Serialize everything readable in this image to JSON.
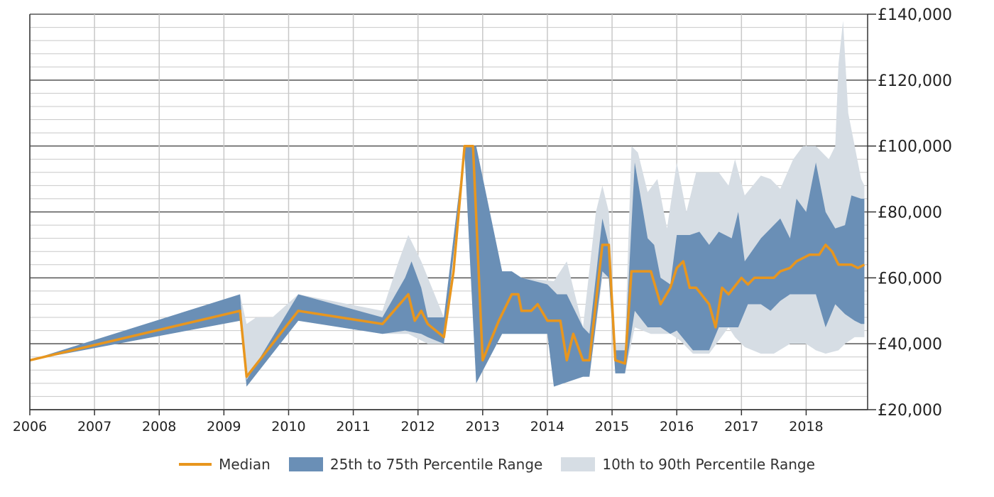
{
  "chart_data": {
    "type": "area",
    "x_tick_labels": [
      "2006",
      "2007",
      "2008",
      "2009",
      "2010",
      "2011",
      "2012",
      "2013",
      "2014",
      "2015",
      "2016",
      "2017",
      "2018"
    ],
    "y_tick_labels": [
      "£20,000",
      "£40,000",
      "£60,000",
      "£80,000",
      "£100,000",
      "£120,000",
      "£140,000"
    ],
    "xlim": [
      2006,
      2018.95
    ],
    "ylim": [
      20000,
      140000
    ],
    "y_gridline_step": 4000,
    "grid": true,
    "legend_position": "bottom",
    "colors": {
      "median": "#e8961e",
      "p25_p75": "#6a8fb6",
      "p10_p90": "#d6dde4",
      "grid_minor": "#c8c8c8",
      "grid_major": "#555555"
    },
    "series": [
      {
        "name": "Median",
        "points": [
          [
            2006.0,
            35000
          ],
          [
            2009.25,
            50000
          ],
          [
            2009.35,
            30000
          ],
          [
            2010.15,
            50000
          ],
          [
            2011.45,
            46000
          ],
          [
            2011.85,
            55000
          ],
          [
            2011.95,
            47000
          ],
          [
            2012.05,
            50000
          ],
          [
            2012.15,
            46000
          ],
          [
            2012.4,
            42000
          ],
          [
            2012.55,
            62000
          ],
          [
            2012.72,
            100000
          ],
          [
            2012.85,
            100000
          ],
          [
            2013.0,
            35000
          ],
          [
            2013.25,
            47000
          ],
          [
            2013.45,
            55000
          ],
          [
            2013.55,
            55000
          ],
          [
            2013.6,
            50000
          ],
          [
            2013.75,
            50000
          ],
          [
            2013.85,
            52000
          ],
          [
            2014.0,
            47000
          ],
          [
            2014.2,
            47000
          ],
          [
            2014.3,
            35000
          ],
          [
            2014.4,
            43000
          ],
          [
            2014.55,
            35000
          ],
          [
            2014.65,
            35000
          ],
          [
            2014.85,
            70000
          ],
          [
            2014.95,
            70000
          ],
          [
            2015.05,
            35000
          ],
          [
            2015.2,
            34000
          ],
          [
            2015.3,
            62000
          ],
          [
            2015.6,
            62000
          ],
          [
            2015.75,
            52000
          ],
          [
            2015.9,
            57000
          ],
          [
            2016.0,
            63000
          ],
          [
            2016.1,
            65000
          ],
          [
            2016.2,
            57000
          ],
          [
            2016.3,
            57000
          ],
          [
            2016.5,
            52000
          ],
          [
            2016.6,
            45000
          ],
          [
            2016.7,
            57000
          ],
          [
            2016.8,
            55000
          ],
          [
            2017.0,
            60000
          ],
          [
            2017.1,
            58000
          ],
          [
            2017.2,
            60000
          ],
          [
            2017.5,
            60000
          ],
          [
            2017.6,
            62000
          ],
          [
            2017.75,
            63000
          ],
          [
            2017.85,
            65000
          ],
          [
            2017.95,
            66000
          ],
          [
            2018.05,
            67000
          ],
          [
            2018.2,
            67000
          ],
          [
            2018.3,
            70000
          ],
          [
            2018.4,
            68000
          ],
          [
            2018.5,
            64000
          ],
          [
            2018.7,
            64000
          ],
          [
            2018.8,
            63000
          ],
          [
            2018.9,
            64000
          ]
        ]
      },
      {
        "name": "25th to 75th Percentile Range",
        "upper": [
          [
            2006.0,
            35000
          ],
          [
            2009.25,
            55000
          ],
          [
            2009.35,
            29000
          ],
          [
            2010.15,
            55000
          ],
          [
            2011.45,
            48000
          ],
          [
            2011.8,
            60000
          ],
          [
            2011.9,
            65000
          ],
          [
            2012.05,
            57000
          ],
          [
            2012.15,
            48000
          ],
          [
            2012.4,
            48000
          ],
          [
            2012.72,
            100000
          ],
          [
            2012.9,
            100000
          ],
          [
            2013.3,
            62000
          ],
          [
            2013.45,
            62000
          ],
          [
            2013.6,
            60000
          ],
          [
            2014.0,
            58000
          ],
          [
            2014.15,
            55000
          ],
          [
            2014.3,
            55000
          ],
          [
            2014.55,
            45000
          ],
          [
            2014.65,
            43000
          ],
          [
            2014.85,
            78000
          ],
          [
            2014.95,
            70000
          ],
          [
            2015.05,
            38000
          ],
          [
            2015.2,
            38000
          ],
          [
            2015.35,
            95000
          ],
          [
            2015.55,
            72000
          ],
          [
            2015.65,
            70000
          ],
          [
            2015.75,
            60000
          ],
          [
            2015.9,
            58000
          ],
          [
            2016.0,
            73000
          ],
          [
            2016.2,
            73000
          ],
          [
            2016.35,
            74000
          ],
          [
            2016.5,
            70000
          ],
          [
            2016.65,
            74000
          ],
          [
            2016.85,
            72000
          ],
          [
            2016.95,
            80000
          ],
          [
            2017.05,
            65000
          ],
          [
            2017.3,
            72000
          ],
          [
            2017.45,
            75000
          ],
          [
            2017.6,
            78000
          ],
          [
            2017.75,
            72000
          ],
          [
            2017.85,
            84000
          ],
          [
            2018.0,
            80000
          ],
          [
            2018.15,
            95000
          ],
          [
            2018.3,
            80000
          ],
          [
            2018.45,
            75000
          ],
          [
            2018.6,
            76000
          ],
          [
            2018.7,
            85000
          ],
          [
            2018.85,
            84000
          ],
          [
            2018.9,
            84000
          ]
        ],
        "lower": [
          [
            2006.0,
            35000
          ],
          [
            2009.25,
            47000
          ],
          [
            2009.35,
            27000
          ],
          [
            2010.15,
            47000
          ],
          [
            2011.45,
            43000
          ],
          [
            2011.8,
            44000
          ],
          [
            2012.05,
            43000
          ],
          [
            2012.15,
            42000
          ],
          [
            2012.4,
            40000
          ],
          [
            2012.72,
            98000
          ],
          [
            2012.9,
            28000
          ],
          [
            2013.3,
            43000
          ],
          [
            2013.6,
            43000
          ],
          [
            2014.0,
            43000
          ],
          [
            2014.1,
            27000
          ],
          [
            2014.55,
            30000
          ],
          [
            2014.65,
            30000
          ],
          [
            2014.85,
            62000
          ],
          [
            2014.95,
            60000
          ],
          [
            2015.05,
            31000
          ],
          [
            2015.2,
            31000
          ],
          [
            2015.35,
            50000
          ],
          [
            2015.55,
            45000
          ],
          [
            2015.75,
            45000
          ],
          [
            2015.9,
            43000
          ],
          [
            2016.0,
            44000
          ],
          [
            2016.25,
            38000
          ],
          [
            2016.5,
            38000
          ],
          [
            2016.65,
            45000
          ],
          [
            2016.95,
            45000
          ],
          [
            2017.1,
            52000
          ],
          [
            2017.3,
            52000
          ],
          [
            2017.45,
            50000
          ],
          [
            2017.6,
            53000
          ],
          [
            2017.75,
            55000
          ],
          [
            2018.0,
            55000
          ],
          [
            2018.15,
            55000
          ],
          [
            2018.3,
            45000
          ],
          [
            2018.45,
            52000
          ],
          [
            2018.6,
            49000
          ],
          [
            2018.75,
            47000
          ],
          [
            2018.85,
            46000
          ],
          [
            2018.9,
            46000
          ]
        ]
      },
      {
        "name": "10th to 90th Percentile Range",
        "upper": [
          [
            2006.0,
            35000
          ],
          [
            2009.25,
            55000
          ],
          [
            2009.35,
            46000
          ],
          [
            2009.5,
            48000
          ],
          [
            2009.75,
            48000
          ],
          [
            2010.15,
            55000
          ],
          [
            2011.45,
            50000
          ],
          [
            2011.7,
            65000
          ],
          [
            2011.85,
            73000
          ],
          [
            2012.05,
            65000
          ],
          [
            2012.4,
            48000
          ],
          [
            2012.72,
            100000
          ],
          [
            2012.9,
            100000
          ],
          [
            2013.3,
            62000
          ],
          [
            2013.6,
            60000
          ],
          [
            2014.1,
            59000
          ],
          [
            2014.3,
            65000
          ],
          [
            2014.55,
            45000
          ],
          [
            2014.75,
            80000
          ],
          [
            2014.85,
            88000
          ],
          [
            2014.95,
            80000
          ],
          [
            2015.05,
            40000
          ],
          [
            2015.2,
            40000
          ],
          [
            2015.3,
            100000
          ],
          [
            2015.4,
            98000
          ],
          [
            2015.55,
            86000
          ],
          [
            2015.7,
            90000
          ],
          [
            2015.85,
            75000
          ],
          [
            2016.0,
            95000
          ],
          [
            2016.15,
            80000
          ],
          [
            2016.3,
            92000
          ],
          [
            2016.5,
            92000
          ],
          [
            2016.65,
            92000
          ],
          [
            2016.8,
            88000
          ],
          [
            2016.9,
            96000
          ],
          [
            2017.05,
            85000
          ],
          [
            2017.3,
            91000
          ],
          [
            2017.45,
            90000
          ],
          [
            2017.6,
            87000
          ],
          [
            2017.8,
            96000
          ],
          [
            2017.95,
            100000
          ],
          [
            2018.15,
            100000
          ],
          [
            2018.35,
            96000
          ],
          [
            2018.45,
            100000
          ],
          [
            2018.5,
            125000
          ],
          [
            2018.57,
            138000
          ],
          [
            2018.65,
            110000
          ],
          [
            2018.75,
            100000
          ],
          [
            2018.85,
            90000
          ],
          [
            2018.9,
            88000
          ]
        ],
        "lower": [
          [
            2006.0,
            35000
          ],
          [
            2009.25,
            47000
          ],
          [
            2009.35,
            27000
          ],
          [
            2010.15,
            47000
          ],
          [
            2011.45,
            43000
          ],
          [
            2011.85,
            43000
          ],
          [
            2012.15,
            40000
          ],
          [
            2012.4,
            40000
          ],
          [
            2012.72,
            98000
          ],
          [
            2012.9,
            28000
          ],
          [
            2013.3,
            43000
          ],
          [
            2014.0,
            43000
          ],
          [
            2014.1,
            27000
          ],
          [
            2014.55,
            30000
          ],
          [
            2014.65,
            30000
          ],
          [
            2014.85,
            60000
          ],
          [
            2014.95,
            60000
          ],
          [
            2015.05,
            31000
          ],
          [
            2015.2,
            31000
          ],
          [
            2015.35,
            45000
          ],
          [
            2015.6,
            43000
          ],
          [
            2015.9,
            43000
          ],
          [
            2016.05,
            41000
          ],
          [
            2016.25,
            37000
          ],
          [
            2016.5,
            37000
          ],
          [
            2016.8,
            45000
          ],
          [
            2016.9,
            42000
          ],
          [
            2017.05,
            39000
          ],
          [
            2017.3,
            37000
          ],
          [
            2017.5,
            37000
          ],
          [
            2017.75,
            40000
          ],
          [
            2018.0,
            40000
          ],
          [
            2018.15,
            38000
          ],
          [
            2018.3,
            37000
          ],
          [
            2018.5,
            38000
          ],
          [
            2018.6,
            40000
          ],
          [
            2018.75,
            42000
          ],
          [
            2018.9,
            42000
          ]
        ]
      }
    ]
  }
}
